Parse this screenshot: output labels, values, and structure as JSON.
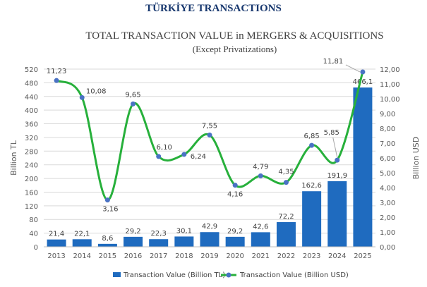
{
  "page_title": "TÜRKİYE TRANSACTIONS",
  "chart_data": {
    "type": "bar+line",
    "title": "TOTAL TRANSACTION VALUE in MERGERS  & ACQUISITIONS",
    "subtitle": "(Except Privatizations)",
    "categories": [
      "2013",
      "2014",
      "2015",
      "2016",
      "2017",
      "2018",
      "2019",
      "2020",
      "2021",
      "2022",
      "2023",
      "2024",
      "2025"
    ],
    "series": [
      {
        "name": "Transaction Value (Billion TL)",
        "type": "bar",
        "axis": "left",
        "color": "#1f6bbf",
        "values": [
          21.4,
          22.1,
          8.6,
          29.2,
          22.3,
          30.1,
          42.9,
          29.2,
          42.6,
          72.2,
          162.6,
          191.9,
          466.1
        ],
        "labels": [
          "21,4",
          "22,1",
          "8,6",
          "29,2",
          "22,3",
          "30,1",
          "42,9",
          "29,2",
          "42,6",
          "72,2",
          "162,6",
          "191,9",
          "466,1"
        ]
      },
      {
        "name": "Transaction Value (Billion USD)",
        "type": "line",
        "axis": "right",
        "color": "#27b03b",
        "marker_color": "#4a72c4",
        "values": [
          11.23,
          10.08,
          3.16,
          9.65,
          6.1,
          6.24,
          7.55,
          4.16,
          4.79,
          4.35,
          6.85,
          5.85,
          11.81
        ],
        "labels": [
          "11,23",
          "10,08",
          "3,16",
          "9,65",
          "6,10",
          "6,24",
          "7,55",
          "4,16",
          "4,79",
          "4,35",
          "6,85",
          "5,85",
          "11,81"
        ]
      }
    ],
    "ylabel_left": "Billion TL",
    "ylabel_right": "Billion USD",
    "ylim_left": [
      0,
      520
    ],
    "ylim_right": [
      0,
      12
    ],
    "yticks_left": [
      "0",
      "40",
      "80",
      "120",
      "160",
      "200",
      "240",
      "280",
      "320",
      "360",
      "400",
      "440",
      "480",
      "520"
    ],
    "yticks_right": [
      "0,00",
      "1,00",
      "2,00",
      "3,00",
      "4,00",
      "5,00",
      "6,00",
      "7,00",
      "8,00",
      "9,00",
      "10,00",
      "11,00",
      "12,00"
    ],
    "grid": true,
    "legend_position": "bottom"
  }
}
